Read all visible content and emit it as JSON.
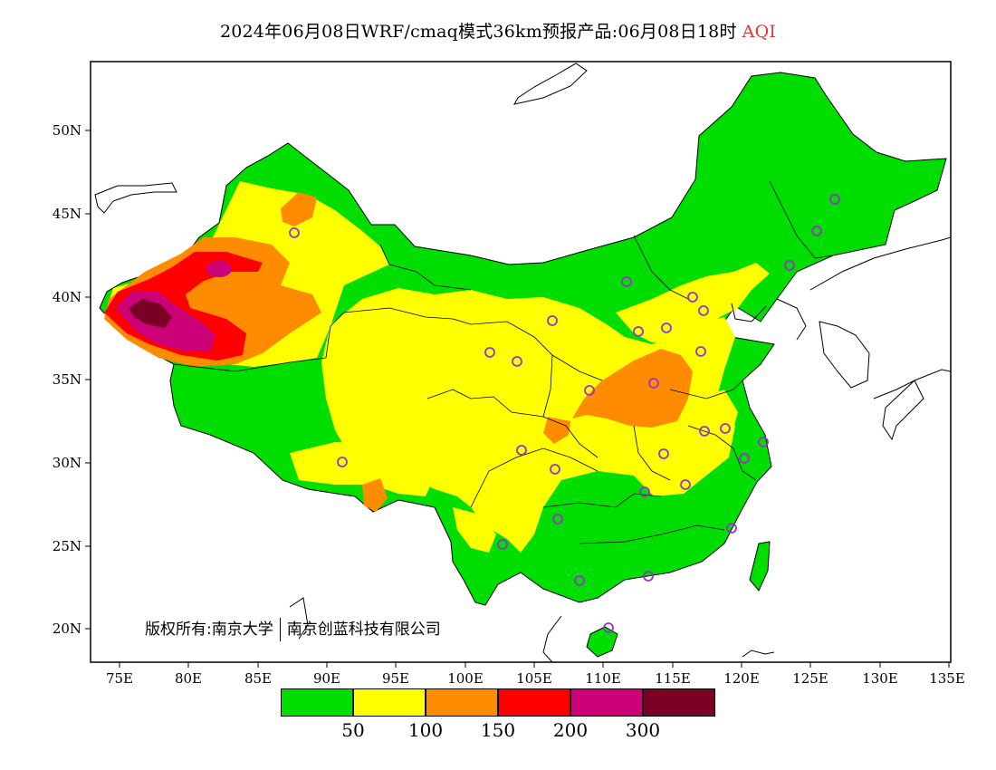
{
  "title": {
    "text": "2024年06月08日WRF/cmaq模式36km预报产品:06月08日18时",
    "variable": "AQI"
  },
  "axes": {
    "lon_labels": [
      "75E",
      "80E",
      "85E",
      "90E",
      "95E",
      "100E",
      "105E",
      "110E",
      "115E",
      "120E",
      "125E",
      "130E",
      "135E"
    ],
    "lat_labels": [
      "50N",
      "45N",
      "40N",
      "35N",
      "30N",
      "25N",
      "20N"
    ]
  },
  "copyright": {
    "left": "版权所有:南京大学",
    "right": "南京创蓝科技有限公司"
  },
  "legend": {
    "thresholds": [
      "50",
      "100",
      "150",
      "200",
      "300"
    ],
    "colors": [
      "#00dd00",
      "#ffff00",
      "#ff8c00",
      "#ff0000",
      "#cc0077",
      "#7a0026"
    ]
  },
  "map_colors": {
    "good": "#00dd00",
    "moderate": "#ffff00",
    "sensitive": "#ff8c00",
    "unhealthy": "#ff0000",
    "very_unhealthy": "#cc0077",
    "hazardous": "#7a0026",
    "station_marker": "#9933cc"
  }
}
